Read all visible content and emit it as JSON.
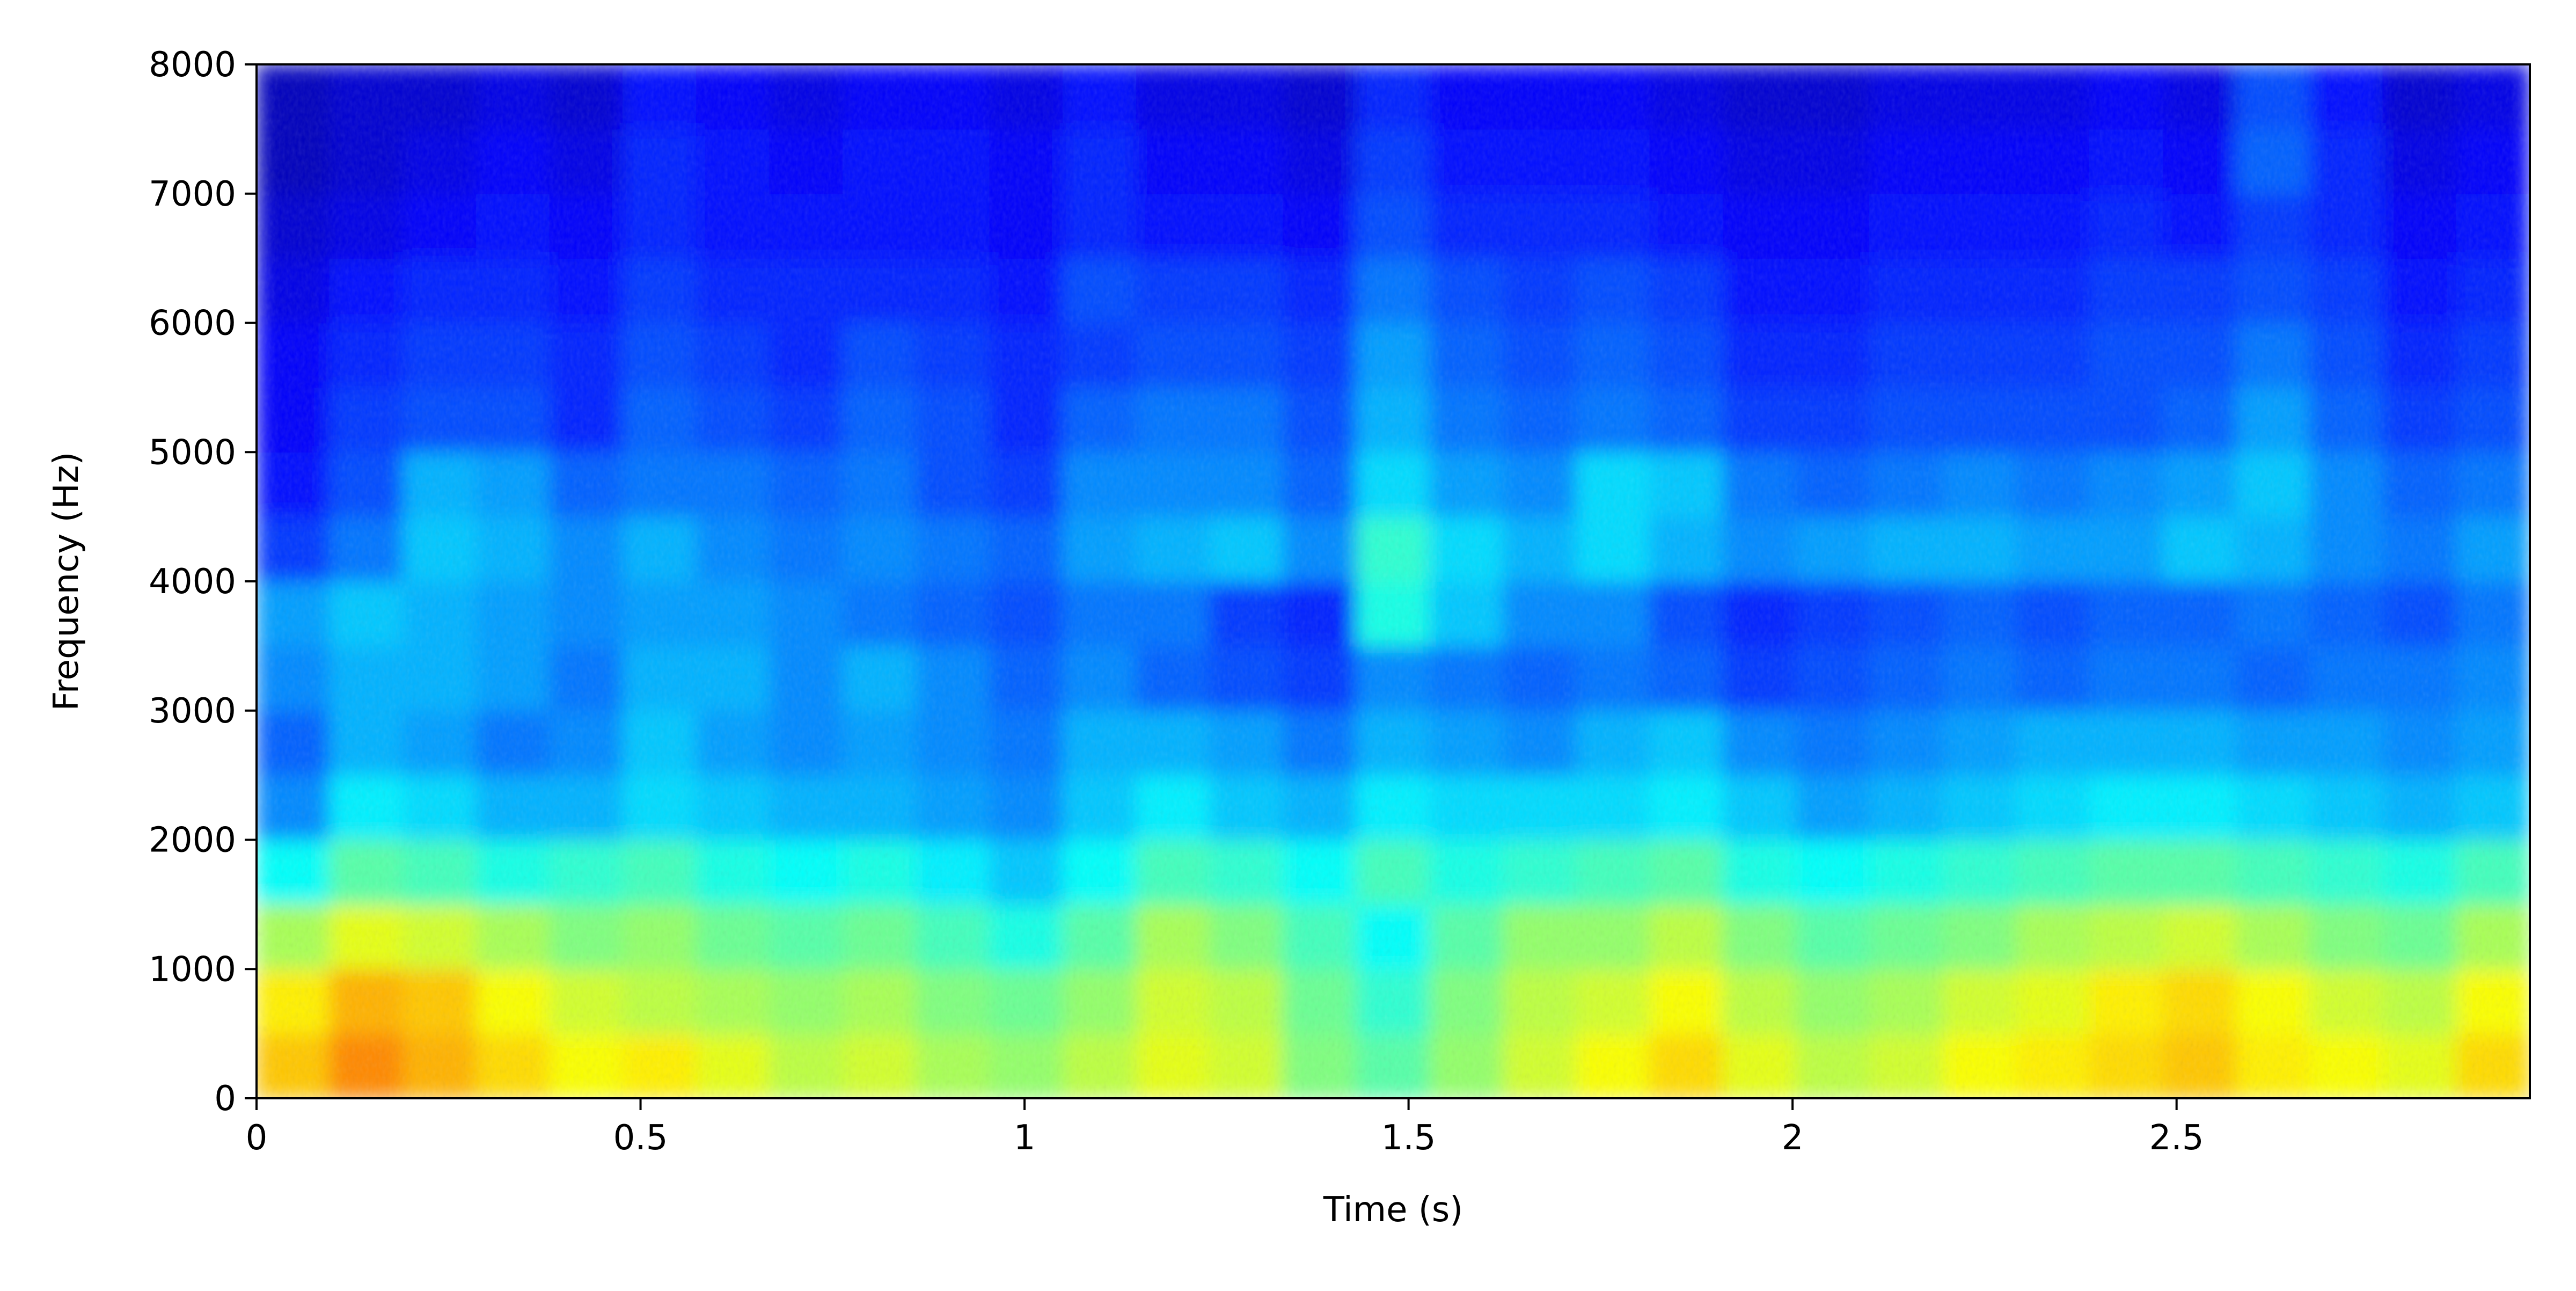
{
  "chart_data": {
    "type": "heatmap",
    "title": "",
    "xlabel": "Time (s)",
    "ylabel": "Frequency (Hz)",
    "xlim": [
      0,
      2.96
    ],
    "ylim": [
      0,
      8000
    ],
    "x_ticks": [
      0,
      0.5,
      1,
      1.5,
      2,
      2.5
    ],
    "x_tick_labels": [
      "0",
      "0.5",
      "1",
      "1.5",
      "2",
      "2.5"
    ],
    "y_ticks": [
      0,
      1000,
      2000,
      3000,
      4000,
      5000,
      6000,
      7000,
      8000
    ],
    "y_tick_labels": [
      "0",
      "1000",
      "2000",
      "3000",
      "4000",
      "5000",
      "6000",
      "7000",
      "8000"
    ],
    "grid": false,
    "legend": "none",
    "colormap": "jet",
    "colormap_stops": [
      "#00007f",
      "#0000ff",
      "#007fff",
      "#00ffff",
      "#7fff7f",
      "#ffff00",
      "#ff7f00",
      "#ff0000",
      "#7f0000"
    ],
    "intensity_normalized": [
      [
        0.68,
        0.74,
        0.7,
        0.66,
        0.62,
        0.64,
        0.6,
        0.56,
        0.58,
        0.54,
        0.52,
        0.56,
        0.6,
        0.58,
        0.5,
        0.46,
        0.52,
        0.58,
        0.62,
        0.66,
        0.6,
        0.56,
        0.58,
        0.62,
        0.64,
        0.66,
        0.68,
        0.64,
        0.62,
        0.6,
        0.66
      ],
      [
        0.64,
        0.7,
        0.68,
        0.62,
        0.58,
        0.56,
        0.54,
        0.52,
        0.54,
        0.5,
        0.48,
        0.52,
        0.58,
        0.56,
        0.48,
        0.42,
        0.5,
        0.56,
        0.58,
        0.62,
        0.56,
        0.52,
        0.54,
        0.58,
        0.6,
        0.64,
        0.66,
        0.62,
        0.58,
        0.56,
        0.62
      ],
      [
        0.54,
        0.6,
        0.58,
        0.54,
        0.5,
        0.52,
        0.48,
        0.46,
        0.48,
        0.44,
        0.4,
        0.46,
        0.54,
        0.5,
        0.44,
        0.38,
        0.46,
        0.52,
        0.52,
        0.56,
        0.5,
        0.46,
        0.48,
        0.5,
        0.54,
        0.56,
        0.58,
        0.54,
        0.5,
        0.48,
        0.54
      ],
      [
        0.38,
        0.46,
        0.44,
        0.4,
        0.42,
        0.44,
        0.4,
        0.38,
        0.4,
        0.36,
        0.32,
        0.38,
        0.44,
        0.42,
        0.38,
        0.44,
        0.4,
        0.42,
        0.44,
        0.46,
        0.4,
        0.38,
        0.4,
        0.42,
        0.44,
        0.46,
        0.46,
        0.44,
        0.42,
        0.4,
        0.44
      ],
      [
        0.26,
        0.36,
        0.34,
        0.3,
        0.3,
        0.34,
        0.32,
        0.3,
        0.3,
        0.28,
        0.26,
        0.32,
        0.36,
        0.32,
        0.3,
        0.36,
        0.34,
        0.34,
        0.34,
        0.36,
        0.32,
        0.28,
        0.3,
        0.32,
        0.34,
        0.36,
        0.36,
        0.34,
        0.32,
        0.3,
        0.32
      ],
      [
        0.22,
        0.3,
        0.28,
        0.24,
        0.26,
        0.32,
        0.28,
        0.26,
        0.28,
        0.26,
        0.24,
        0.3,
        0.3,
        0.28,
        0.24,
        0.3,
        0.28,
        0.26,
        0.3,
        0.32,
        0.26,
        0.24,
        0.26,
        0.28,
        0.3,
        0.3,
        0.3,
        0.28,
        0.28,
        0.26,
        0.28
      ],
      [
        0.26,
        0.3,
        0.3,
        0.28,
        0.24,
        0.3,
        0.3,
        0.26,
        0.3,
        0.26,
        0.22,
        0.26,
        0.22,
        0.2,
        0.18,
        0.26,
        0.24,
        0.22,
        0.24,
        0.22,
        0.18,
        0.2,
        0.22,
        0.24,
        0.22,
        0.24,
        0.24,
        0.22,
        0.24,
        0.24,
        0.26
      ],
      [
        0.28,
        0.32,
        0.3,
        0.28,
        0.26,
        0.28,
        0.28,
        0.26,
        0.24,
        0.22,
        0.2,
        0.24,
        0.24,
        0.18,
        0.16,
        0.4,
        0.32,
        0.26,
        0.26,
        0.2,
        0.16,
        0.18,
        0.2,
        0.22,
        0.2,
        0.22,
        0.22,
        0.24,
        0.22,
        0.2,
        0.24
      ],
      [
        0.18,
        0.24,
        0.32,
        0.3,
        0.26,
        0.3,
        0.26,
        0.24,
        0.26,
        0.24,
        0.22,
        0.28,
        0.3,
        0.32,
        0.26,
        0.42,
        0.34,
        0.3,
        0.34,
        0.3,
        0.26,
        0.28,
        0.3,
        0.3,
        0.28,
        0.28,
        0.32,
        0.3,
        0.26,
        0.24,
        0.28
      ],
      [
        0.14,
        0.2,
        0.3,
        0.28,
        0.22,
        0.24,
        0.24,
        0.22,
        0.24,
        0.2,
        0.18,
        0.26,
        0.26,
        0.26,
        0.22,
        0.34,
        0.28,
        0.26,
        0.34,
        0.32,
        0.24,
        0.22,
        0.24,
        0.26,
        0.24,
        0.26,
        0.28,
        0.32,
        0.26,
        0.22,
        0.24
      ],
      [
        0.12,
        0.18,
        0.2,
        0.2,
        0.16,
        0.22,
        0.2,
        0.18,
        0.22,
        0.2,
        0.16,
        0.22,
        0.24,
        0.24,
        0.2,
        0.3,
        0.24,
        0.22,
        0.24,
        0.22,
        0.18,
        0.18,
        0.2,
        0.2,
        0.2,
        0.2,
        0.22,
        0.28,
        0.22,
        0.18,
        0.2
      ],
      [
        0.12,
        0.16,
        0.18,
        0.18,
        0.16,
        0.2,
        0.18,
        0.16,
        0.2,
        0.18,
        0.16,
        0.18,
        0.2,
        0.2,
        0.18,
        0.28,
        0.22,
        0.2,
        0.22,
        0.2,
        0.16,
        0.16,
        0.18,
        0.18,
        0.18,
        0.2,
        0.2,
        0.24,
        0.2,
        0.16,
        0.18
      ],
      [
        0.1,
        0.14,
        0.16,
        0.16,
        0.14,
        0.18,
        0.16,
        0.16,
        0.16,
        0.16,
        0.14,
        0.2,
        0.18,
        0.18,
        0.16,
        0.24,
        0.2,
        0.18,
        0.2,
        0.18,
        0.14,
        0.14,
        0.16,
        0.16,
        0.16,
        0.18,
        0.18,
        0.2,
        0.18,
        0.14,
        0.16
      ],
      [
        0.08,
        0.1,
        0.12,
        0.14,
        0.12,
        0.16,
        0.14,
        0.14,
        0.14,
        0.14,
        0.12,
        0.16,
        0.14,
        0.14,
        0.12,
        0.2,
        0.16,
        0.16,
        0.16,
        0.14,
        0.12,
        0.12,
        0.14,
        0.14,
        0.14,
        0.16,
        0.14,
        0.18,
        0.16,
        0.12,
        0.14
      ],
      [
        0.06,
        0.08,
        0.1,
        0.12,
        0.1,
        0.16,
        0.14,
        0.12,
        0.14,
        0.14,
        0.12,
        0.16,
        0.12,
        0.12,
        0.1,
        0.18,
        0.14,
        0.14,
        0.14,
        0.12,
        0.1,
        0.1,
        0.12,
        0.12,
        0.12,
        0.14,
        0.12,
        0.22,
        0.16,
        0.1,
        0.12
      ],
      [
        0.06,
        0.08,
        0.08,
        0.1,
        0.08,
        0.14,
        0.12,
        0.1,
        0.12,
        0.12,
        0.1,
        0.14,
        0.1,
        0.1,
        0.08,
        0.16,
        0.12,
        0.12,
        0.12,
        0.1,
        0.08,
        0.08,
        0.1,
        0.1,
        0.1,
        0.12,
        0.1,
        0.2,
        0.14,
        0.08,
        0.1
      ]
    ]
  }
}
